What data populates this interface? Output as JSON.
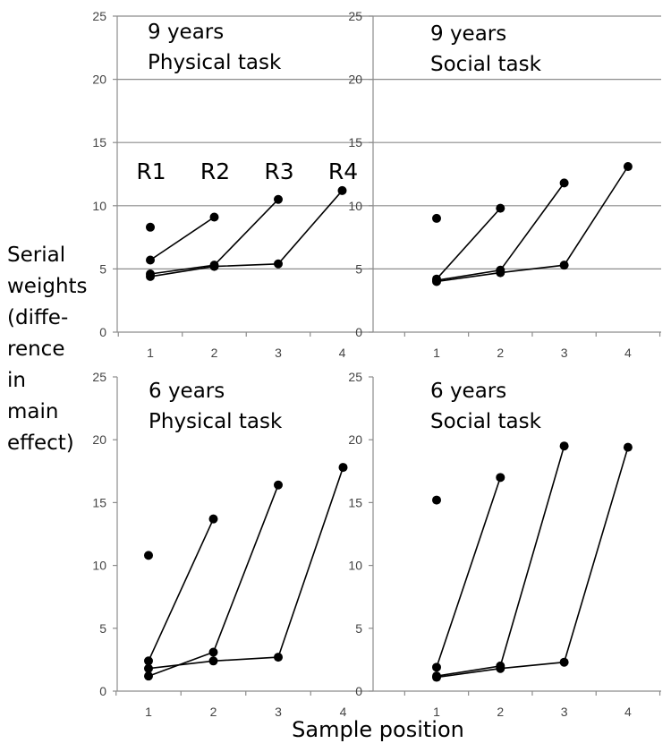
{
  "ylabel_lines": [
    "Serial",
    "weights",
    "(diffe-",
    "rence",
    "in",
    "main",
    "effect)"
  ],
  "xlabel": "Sample position",
  "chart_data": [
    {
      "type": "line",
      "title_lines": [
        "9 years",
        "Physical  task"
      ],
      "x": [
        1,
        2,
        3,
        4
      ],
      "ylim": [
        0,
        25
      ],
      "yticks": [
        0,
        5,
        10,
        15,
        20,
        25
      ],
      "grid": true,
      "series_labels": [
        "R1",
        "R2",
        "R3",
        "R4"
      ],
      "series": [
        {
          "name": "R1",
          "points": [
            [
              1,
              8.3
            ]
          ]
        },
        {
          "name": "R2",
          "points": [
            [
              1,
              5.7
            ],
            [
              2,
              9.1
            ]
          ]
        },
        {
          "name": "R3",
          "points": [
            [
              1,
              4.6
            ],
            [
              2,
              5.3
            ],
            [
              3,
              10.5
            ]
          ]
        },
        {
          "name": "R4",
          "points": [
            [
              1,
              4.4
            ],
            [
              2,
              5.2
            ],
            [
              3,
              5.4
            ],
            [
              4,
              11.2
            ]
          ]
        }
      ]
    },
    {
      "type": "line",
      "title_lines": [
        "9 years",
        "Social task"
      ],
      "x": [
        1,
        2,
        3,
        4
      ],
      "ylim": [
        0,
        25
      ],
      "yticks": [
        0,
        5,
        10,
        15,
        20,
        25
      ],
      "grid": true,
      "series": [
        {
          "name": "R1",
          "points": [
            [
              1,
              9.0
            ]
          ]
        },
        {
          "name": "R2",
          "points": [
            [
              1,
              4.2
            ],
            [
              2,
              9.8
            ]
          ]
        },
        {
          "name": "R3",
          "points": [
            [
              1,
              4.1
            ],
            [
              2,
              4.9
            ],
            [
              3,
              11.8
            ]
          ]
        },
        {
          "name": "R4",
          "points": [
            [
              1,
              4.0
            ],
            [
              2,
              4.7
            ],
            [
              3,
              5.3
            ],
            [
              4,
              13.1
            ]
          ]
        }
      ]
    },
    {
      "type": "line",
      "title_lines": [
        "6 years",
        "Physical  task"
      ],
      "x": [
        1,
        2,
        3,
        4
      ],
      "ylim": [
        0,
        25
      ],
      "yticks": [
        0,
        5,
        10,
        15,
        20,
        25
      ],
      "grid": false,
      "series": [
        {
          "name": "R1",
          "points": [
            [
              1,
              10.8
            ]
          ]
        },
        {
          "name": "R2",
          "points": [
            [
              1,
              2.4
            ],
            [
              2,
              13.7
            ]
          ]
        },
        {
          "name": "R3",
          "points": [
            [
              1,
              1.2
            ],
            [
              2,
              3.1
            ],
            [
              3,
              16.4
            ]
          ]
        },
        {
          "name": "R4",
          "points": [
            [
              1,
              1.8
            ],
            [
              2,
              2.4
            ],
            [
              3,
              2.7
            ],
            [
              4,
              17.8
            ]
          ]
        }
      ]
    },
    {
      "type": "line",
      "title_lines": [
        "6 years",
        "Social task"
      ],
      "x": [
        1,
        2,
        3,
        4
      ],
      "ylim": [
        0,
        25
      ],
      "yticks": [
        0,
        5,
        10,
        15,
        20,
        25
      ],
      "grid": false,
      "series": [
        {
          "name": "R1",
          "points": [
            [
              1,
              15.2
            ]
          ]
        },
        {
          "name": "R2",
          "points": [
            [
              1,
              1.9
            ],
            [
              2,
              17.0
            ]
          ]
        },
        {
          "name": "R3",
          "points": [
            [
              1,
              1.2
            ],
            [
              2,
              2.0
            ],
            [
              3,
              19.5
            ]
          ]
        },
        {
          "name": "R4",
          "points": [
            [
              1,
              1.1
            ],
            [
              2,
              1.8
            ],
            [
              3,
              2.3
            ],
            [
              4,
              19.4
            ]
          ]
        }
      ]
    }
  ]
}
